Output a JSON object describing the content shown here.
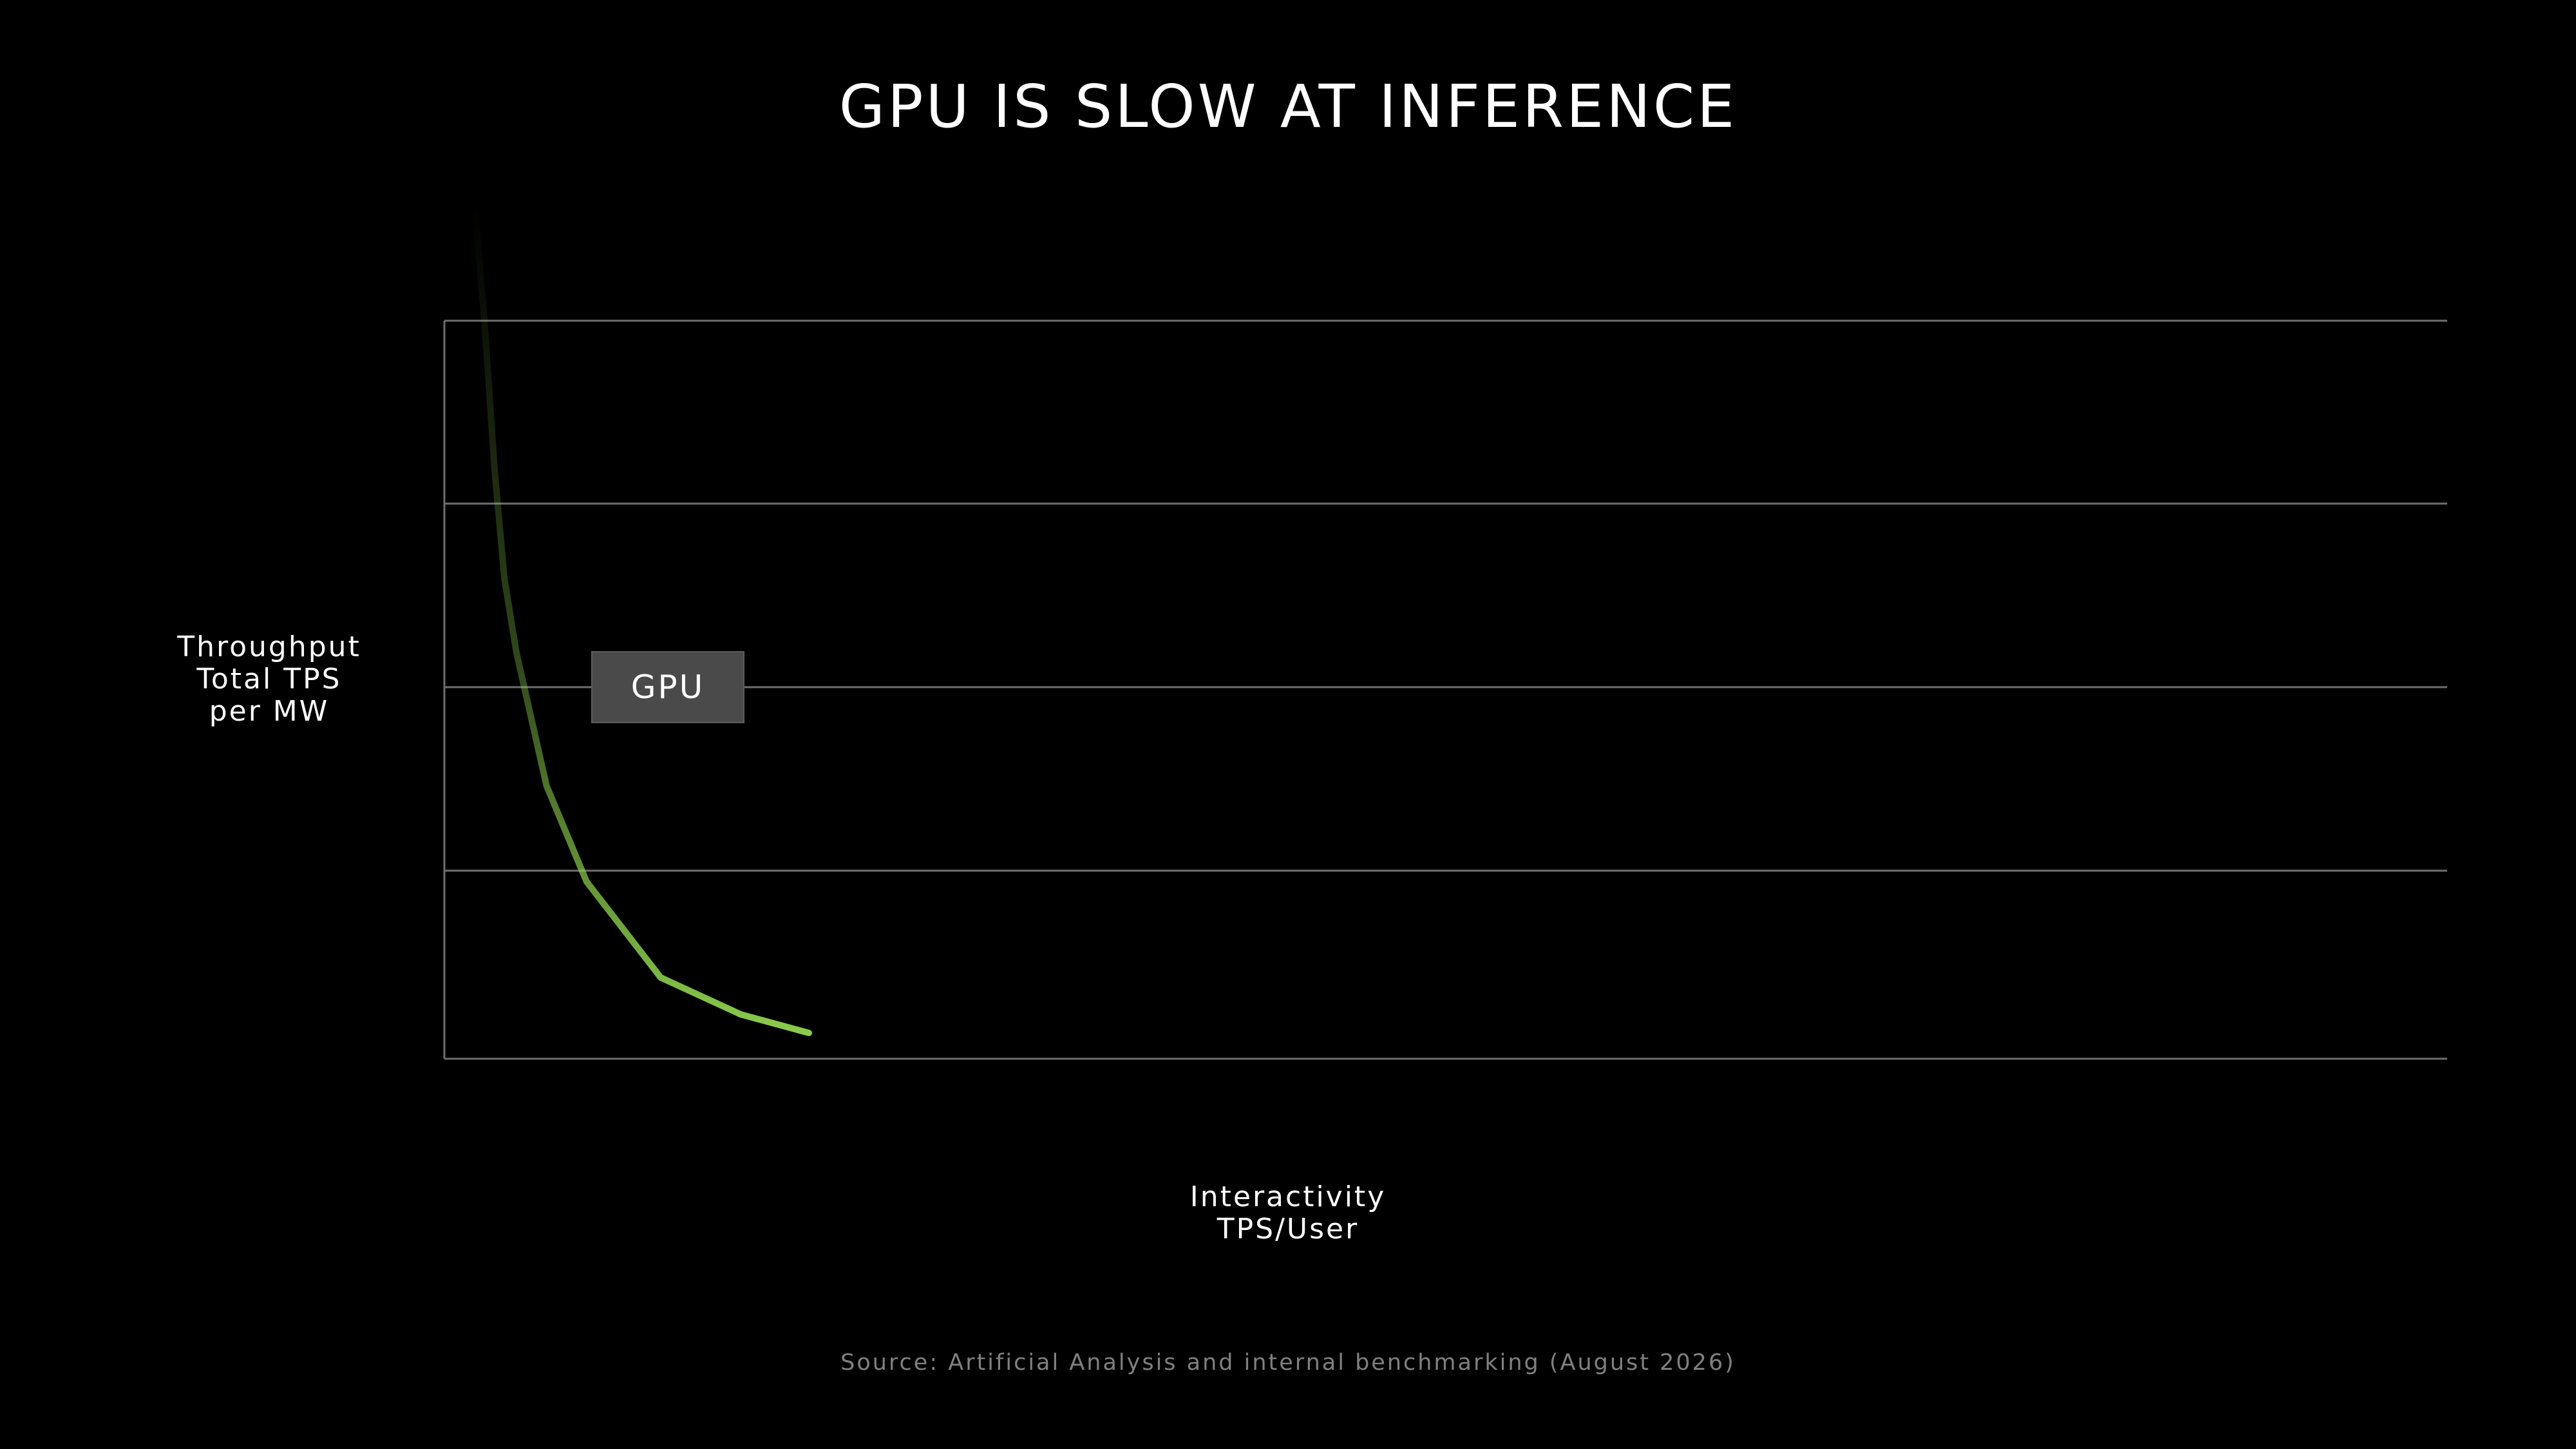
{
  "title": "GPU IS SLOW AT INFERENCE",
  "source": "Source: Artificial Analysis and internal benchmarking (August 2026)",
  "chart_data": {
    "type": "line",
    "title": "GPU IS SLOW AT INFERENCE",
    "ylabel_lines": [
      "Throughput",
      "Total TPS",
      "per MW"
    ],
    "xlabel_lines": [
      "Interactivity",
      "TPS/User"
    ],
    "xlim": [
      0,
      100
    ],
    "ylim": [
      0,
      100
    ],
    "grid": true,
    "series": [
      {
        "name": "GPU",
        "color": "#8ccf4d",
        "x": [
          1.5,
          2.0,
          2.5,
          3.0,
          3.6,
          5.1,
          7.1,
          10.8,
          14.8,
          18.2
        ],
        "y": [
          116,
          100,
          80,
          65,
          55,
          37,
          24,
          11,
          6,
          3.5
        ]
      }
    ]
  }
}
